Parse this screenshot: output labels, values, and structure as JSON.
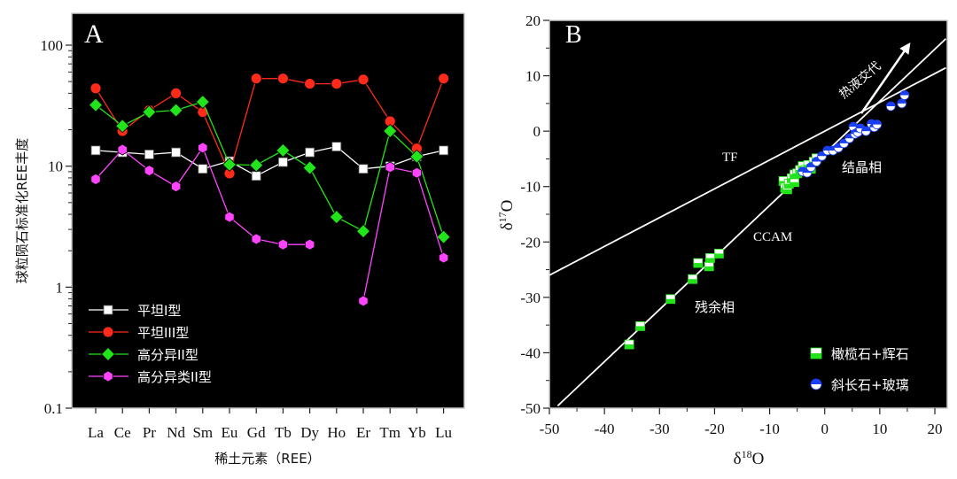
{
  "chart_data": [
    {
      "panel_label": "A",
      "type": "line",
      "yscale": "log",
      "ylim": [
        0.1,
        100
      ],
      "yticks": [
        0.1,
        1,
        10,
        100
      ],
      "ytick_labels": [
        "0.1",
        "1",
        "10",
        "100"
      ],
      "ylabel": "球粒陨石标准化REE丰度",
      "xlabel": "稀土元素（REE）",
      "categories": [
        "La",
        "Ce",
        "Pr",
        "Nd",
        "Sm",
        "Eu",
        "Gd",
        "Tb",
        "Dy",
        "Ho",
        "Er",
        "Tm",
        "Yb",
        "Lu"
      ],
      "series": [
        {
          "name": "平坦I型",
          "color": "#ffffff",
          "marker": "square",
          "values": [
            13.5,
            13,
            12.5,
            13,
            9.5,
            11,
            8.3,
            10.8,
            13,
            14.5,
            9.5,
            10,
            12,
            13.5
          ]
        },
        {
          "name": "平坦III型",
          "color": "#ff2a1a",
          "marker": "circle",
          "values": [
            44,
            19.5,
            29,
            40,
            28,
            8.7,
            53,
            53,
            48,
            48,
            52,
            23.5,
            14,
            53
          ]
        },
        {
          "name": "高分异II型",
          "color": "#22e41a",
          "marker": "diamond",
          "values": [
            32,
            21.5,
            28,
            29,
            34,
            10.3,
            10.2,
            13.5,
            9.7,
            3.8,
            2.9,
            19.5,
            12,
            2.6
          ]
        },
        {
          "name": "高分异类II型",
          "color": "#ff44ff",
          "marker": "hexagon",
          "values": [
            7.8,
            13.7,
            9.2,
            6.8,
            14.2,
            3.8,
            2.5,
            2.25,
            2.25,
            null,
            0.77,
            9.8,
            8.8,
            1.75
          ]
        }
      ],
      "legend_position": "bottom-left"
    },
    {
      "panel_label": "B",
      "type": "scatter",
      "xlabel": "δ18O",
      "ylabel": "δ17O",
      "xlim": [
        -50,
        22
      ],
      "ylim": [
        -50,
        22
      ],
      "xticks": [
        -50,
        -40,
        -30,
        -20,
        -10,
        0,
        10,
        20
      ],
      "yticks": [
        -50,
        -40,
        -30,
        -20,
        -10,
        0,
        10,
        20
      ],
      "reference_lines": [
        {
          "name": "TF",
          "slope": 0.52,
          "intercept": 0,
          "x_range": [
            -50,
            22
          ]
        },
        {
          "name": "CCAM",
          "slope": 0.94,
          "intercept": -4,
          "x_range": [
            -48.5,
            22
          ]
        }
      ],
      "series": [
        {
          "name": "橄榄石+辉石",
          "marker": "half-square",
          "color": "#22e41a",
          "points": [
            [
              -35.5,
              -38.5
            ],
            [
              -33.5,
              -35.2
            ],
            [
              -28,
              -30.3
            ],
            [
              -24,
              -26.7
            ],
            [
              -23,
              -23.8
            ],
            [
              -21,
              -24.4
            ],
            [
              -20.8,
              -22.9
            ],
            [
              -19.2,
              -22.1
            ],
            [
              -7.5,
              -9
            ],
            [
              -7.2,
              -10.2
            ],
            [
              -6.8,
              -10.5
            ],
            [
              -6.5,
              -9.5
            ],
            [
              -6,
              -8.5
            ],
            [
              -5.5,
              -9.2
            ],
            [
              -5.5,
              -7.8
            ],
            [
              -5,
              -7.6
            ],
            [
              -4.5,
              -7
            ],
            [
              -4,
              -6.3
            ],
            [
              -3.5,
              -7
            ],
            [
              -3,
              -6.1
            ],
            [
              -2.5,
              -6.8
            ],
            [
              -2,
              -5.5
            ],
            [
              -1.5,
              -4.9
            ]
          ]
        },
        {
          "name": "斜长石+玻璃",
          "marker": "half-circle",
          "color": "#1a3ff2",
          "points": [
            [
              -4,
              -7.3
            ],
            [
              -3.2,
              -7.5
            ],
            [
              -2.5,
              -6.5
            ],
            [
              -1.5,
              -5.5
            ],
            [
              -0.5,
              -4.5
            ],
            [
              0.5,
              -3.5
            ],
            [
              1.5,
              -3.5
            ],
            [
              2.5,
              -3
            ],
            [
              3.5,
              -2.2
            ],
            [
              4.5,
              -1.3
            ],
            [
              5.2,
              0.8
            ],
            [
              5.5,
              -0.5
            ],
            [
              6,
              -0.2
            ],
            [
              6.5,
              0.5
            ],
            [
              7.5,
              0
            ],
            [
              8.5,
              1.3
            ],
            [
              9,
              0.7
            ],
            [
              9.5,
              1.2
            ],
            [
              12,
              4.5
            ],
            [
              14,
              5
            ],
            [
              14.5,
              6.5
            ]
          ]
        }
      ],
      "annotations": {
        "tf": "TF",
        "ccam": "CCAM",
        "crystal": "结晶相",
        "residual": "残余相",
        "hydrothermal": "热液交代"
      },
      "legend_position": "bottom-right"
    }
  ]
}
